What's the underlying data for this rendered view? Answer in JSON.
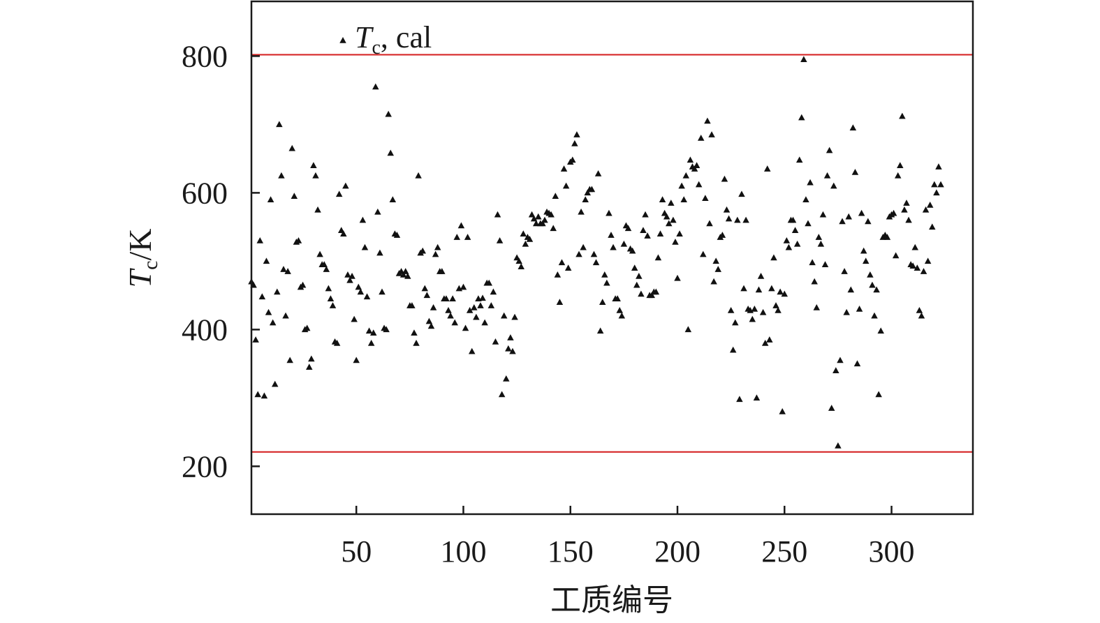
{
  "chart_data": {
    "type": "scatter",
    "xlabel": "工质编号",
    "ylabel": {
      "symbol": "T",
      "subscript": "c",
      "unit": "/K"
    },
    "legend": {
      "symbol": "T",
      "subscript": "c",
      "suffix": ", cal",
      "placement": "top-left",
      "marker": "triangle"
    },
    "xlim": [
      1,
      338
    ],
    "ylim": [
      130,
      880
    ],
    "xticks": [
      50,
      100,
      150,
      200,
      250,
      300
    ],
    "yticks": [
      200,
      400,
      600,
      800
    ],
    "grid": false,
    "reference_lines": [
      {
        "y": 802,
        "color": "#d62728"
      },
      {
        "y": 221,
        "color": "#d62728"
      }
    ],
    "marker_color": "#111111",
    "series": [
      {
        "y": [
          470,
          465,
          385,
          305,
          530,
          448,
          303,
          500,
          425,
          590,
          410,
          320,
          455,
          700,
          625,
          488,
          420,
          485,
          355,
          665,
          595,
          528,
          530,
          462,
          465,
          400,
          402,
          345,
          357,
          640,
          625,
          575,
          510,
          495,
          495,
          488,
          460,
          445,
          435,
          382,
          380,
          598,
          545,
          540,
          610,
          480,
          472,
          478,
          415,
          355,
          462,
          455,
          560,
          520,
          448,
          398,
          380,
          395,
          755,
          572,
          512,
          455,
          402,
          400,
          715,
          658,
          590,
          540,
          538,
          482,
          485,
          480,
          485,
          478,
          435,
          435,
          395,
          380,
          625,
          512,
          515,
          460,
          450,
          412,
          405,
          432,
          510,
          520,
          485,
          485,
          445,
          445,
          428,
          420,
          445,
          410,
          535,
          460,
          552,
          462,
          402,
          535,
          428,
          368,
          432,
          418,
          445,
          435,
          446,
          410,
          468,
          468,
          435,
          455,
          382,
          568,
          530,
          305,
          420,
          328,
          372,
          388,
          368,
          418,
          505,
          500,
          492,
          540,
          525,
          535,
          532,
          568,
          562,
          555,
          565,
          555,
          555,
          560,
          572,
          570,
          568,
          548,
          595,
          480,
          440,
          498,
          635,
          610,
          490,
          645,
          648,
          672,
          685,
          510,
          572,
          520,
          590,
          600,
          605,
          605,
          510,
          498,
          628,
          398,
          440,
          480,
          468,
          570,
          538,
          520,
          445,
          445,
          428,
          420,
          525,
          552,
          548,
          518,
          515,
          490,
          465,
          478,
          452,
          545,
          568,
          537,
          450,
          450,
          455,
          455,
          505,
          540,
          590,
          570,
          565,
          555,
          585,
          560,
          528,
          475,
          540,
          610,
          590,
          625,
          400,
          648,
          638,
          635,
          640,
          612,
          680,
          510,
          592,
          705,
          555,
          685,
          470,
          500,
          488,
          535,
          538,
          620,
          575,
          562,
          428,
          370,
          410,
          560,
          298,
          598,
          460,
          560,
          430,
          428,
          415,
          430,
          300,
          458,
          478,
          425,
          380,
          635,
          385,
          460,
          505,
          435,
          428,
          455,
          280,
          452,
          530,
          520,
          560,
          560,
          545,
          525,
          648,
          710,
          795,
          590,
          555,
          615,
          498,
          470,
          432,
          535,
          525,
          568,
          495,
          625,
          662,
          285,
          610,
          340,
          230,
          355,
          558,
          485,
          425,
          565,
          458,
          695,
          630,
          350,
          430,
          570,
          515,
          500,
          558,
          480,
          465,
          420,
          458,
          305,
          398,
          535,
          538,
          535,
          565,
          568,
          570,
          508,
          625,
          640,
          712,
          575,
          585,
          560,
          495,
          493,
          520,
          490,
          428,
          420,
          485,
          575,
          500,
          582,
          550,
          612,
          600,
          638,
          612
        ]
      }
    ]
  }
}
